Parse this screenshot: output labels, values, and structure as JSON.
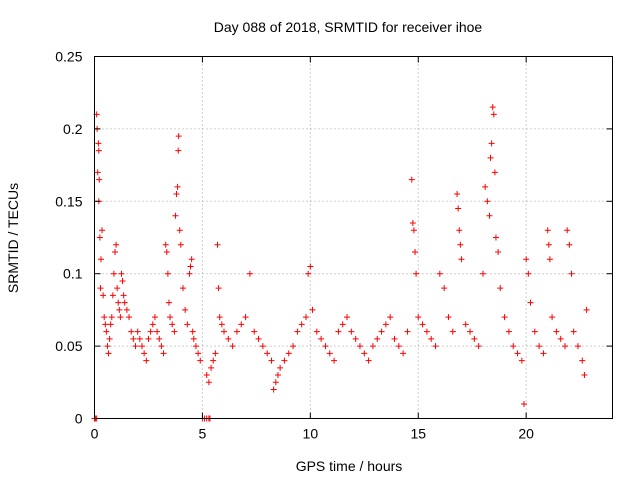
{
  "chart_data": {
    "type": "scatter",
    "title": "Day 088 of 2018, SRMTID for receiver ihoe",
    "xlabel": "GPS time / hours",
    "ylabel": "SRMTID / TECUs",
    "xlim": [
      0,
      24
    ],
    "ylim": [
      0,
      0.25
    ],
    "xticks": [
      0,
      5,
      10,
      15,
      20
    ],
    "xtick_labels": [
      "0",
      "5",
      "10",
      "15",
      "20"
    ],
    "yticks": [
      0,
      0.05,
      0.1,
      0.15,
      0.2,
      0.25
    ],
    "ytick_labels": [
      "0",
      "0.05",
      "0.1",
      "0.15",
      "0.2",
      "0.25"
    ],
    "grid": true,
    "marker": "plus",
    "color": "#ff0000",
    "series": [
      {
        "name": "SRMTID",
        "points": [
          [
            0.0,
            0.0
          ],
          [
            0.05,
            0.0
          ],
          [
            0.1,
            0.0
          ],
          [
            0.1,
            0.21
          ],
          [
            0.12,
            0.2
          ],
          [
            0.18,
            0.19
          ],
          [
            0.2,
            0.185
          ],
          [
            0.15,
            0.17
          ],
          [
            0.22,
            0.165
          ],
          [
            0.2,
            0.15
          ],
          [
            0.25,
            0.125
          ],
          [
            0.3,
            0.11
          ],
          [
            0.35,
            0.13
          ],
          [
            0.28,
            0.09
          ],
          [
            0.4,
            0.085
          ],
          [
            0.45,
            0.07
          ],
          [
            0.5,
            0.065
          ],
          [
            0.55,
            0.06
          ],
          [
            0.6,
            0.05
          ],
          [
            0.65,
            0.045
          ],
          [
            0.7,
            0.055
          ],
          [
            0.75,
            0.065
          ],
          [
            0.8,
            0.07
          ],
          [
            0.85,
            0.085
          ],
          [
            0.9,
            0.1
          ],
          [
            0.95,
            0.115
          ],
          [
            1.0,
            0.12
          ],
          [
            1.05,
            0.09
          ],
          [
            1.1,
            0.08
          ],
          [
            1.15,
            0.075
          ],
          [
            1.2,
            0.07
          ],
          [
            1.25,
            0.1
          ],
          [
            1.3,
            0.095
          ],
          [
            1.35,
            0.085
          ],
          [
            1.4,
            0.08
          ],
          [
            1.5,
            0.075
          ],
          [
            1.6,
            0.07
          ],
          [
            1.7,
            0.06
          ],
          [
            1.8,
            0.055
          ],
          [
            1.9,
            0.05
          ],
          [
            2.0,
            0.06
          ],
          [
            2.1,
            0.055
          ],
          [
            2.2,
            0.05
          ],
          [
            2.3,
            0.045
          ],
          [
            2.4,
            0.04
          ],
          [
            2.5,
            0.055
          ],
          [
            2.6,
            0.06
          ],
          [
            2.7,
            0.065
          ],
          [
            2.8,
            0.07
          ],
          [
            2.9,
            0.06
          ],
          [
            3.0,
            0.055
          ],
          [
            3.1,
            0.05
          ],
          [
            3.2,
            0.045
          ],
          [
            3.3,
            0.12
          ],
          [
            3.35,
            0.115
          ],
          [
            3.4,
            0.1
          ],
          [
            3.45,
            0.08
          ],
          [
            3.5,
            0.07
          ],
          [
            3.6,
            0.065
          ],
          [
            3.7,
            0.06
          ],
          [
            3.75,
            0.14
          ],
          [
            3.8,
            0.155
          ],
          [
            3.85,
            0.16
          ],
          [
            3.88,
            0.185
          ],
          [
            3.9,
            0.195
          ],
          [
            3.95,
            0.13
          ],
          [
            4.0,
            0.12
          ],
          [
            4.1,
            0.09
          ],
          [
            4.2,
            0.075
          ],
          [
            4.3,
            0.065
          ],
          [
            4.4,
            0.1
          ],
          [
            4.45,
            0.105
          ],
          [
            4.5,
            0.11
          ],
          [
            4.55,
            0.06
          ],
          [
            4.6,
            0.055
          ],
          [
            4.7,
            0.05
          ],
          [
            4.8,
            0.045
          ],
          [
            4.9,
            0.04
          ],
          [
            5.0,
            0.0
          ],
          [
            5.1,
            0.0
          ],
          [
            5.2,
            0.0
          ],
          [
            5.3,
            0.0
          ],
          [
            5.35,
            0.0
          ],
          [
            5.2,
            0.03
          ],
          [
            5.3,
            0.025
          ],
          [
            5.4,
            0.035
          ],
          [
            5.5,
            0.04
          ],
          [
            5.6,
            0.045
          ],
          [
            5.7,
            0.12
          ],
          [
            5.75,
            0.09
          ],
          [
            5.8,
            0.07
          ],
          [
            5.9,
            0.065
          ],
          [
            6.0,
            0.06
          ],
          [
            6.2,
            0.055
          ],
          [
            6.4,
            0.05
          ],
          [
            6.6,
            0.06
          ],
          [
            6.8,
            0.065
          ],
          [
            7.0,
            0.07
          ],
          [
            7.2,
            0.1
          ],
          [
            7.4,
            0.06
          ],
          [
            7.6,
            0.055
          ],
          [
            7.8,
            0.05
          ],
          [
            8.0,
            0.045
          ],
          [
            8.2,
            0.04
          ],
          [
            8.3,
            0.02
          ],
          [
            8.4,
            0.025
          ],
          [
            8.5,
            0.03
          ],
          [
            8.6,
            0.035
          ],
          [
            8.8,
            0.04
          ],
          [
            9.0,
            0.045
          ],
          [
            9.2,
            0.05
          ],
          [
            9.4,
            0.06
          ],
          [
            9.6,
            0.065
          ],
          [
            9.8,
            0.07
          ],
          [
            9.9,
            0.1
          ],
          [
            10.0,
            0.105
          ],
          [
            10.1,
            0.075
          ],
          [
            10.3,
            0.06
          ],
          [
            10.5,
            0.055
          ],
          [
            10.7,
            0.05
          ],
          [
            10.9,
            0.045
          ],
          [
            11.1,
            0.04
          ],
          [
            11.3,
            0.06
          ],
          [
            11.5,
            0.065
          ],
          [
            11.7,
            0.07
          ],
          [
            11.9,
            0.06
          ],
          [
            12.1,
            0.055
          ],
          [
            12.3,
            0.05
          ],
          [
            12.5,
            0.045
          ],
          [
            12.7,
            0.04
          ],
          [
            12.9,
            0.05
          ],
          [
            13.1,
            0.055
          ],
          [
            13.3,
            0.06
          ],
          [
            13.5,
            0.065
          ],
          [
            13.7,
            0.07
          ],
          [
            13.9,
            0.055
          ],
          [
            14.1,
            0.05
          ],
          [
            14.3,
            0.045
          ],
          [
            14.5,
            0.06
          ],
          [
            14.7,
            0.165
          ],
          [
            14.75,
            0.135
          ],
          [
            14.8,
            0.13
          ],
          [
            14.85,
            0.115
          ],
          [
            14.9,
            0.1
          ],
          [
            15.0,
            0.07
          ],
          [
            15.2,
            0.065
          ],
          [
            15.4,
            0.06
          ],
          [
            15.6,
            0.055
          ],
          [
            15.8,
            0.05
          ],
          [
            16.0,
            0.1
          ],
          [
            16.2,
            0.09
          ],
          [
            16.4,
            0.07
          ],
          [
            16.6,
            0.06
          ],
          [
            16.8,
            0.155
          ],
          [
            16.85,
            0.145
          ],
          [
            16.9,
            0.13
          ],
          [
            16.95,
            0.12
          ],
          [
            17.0,
            0.11
          ],
          [
            17.2,
            0.065
          ],
          [
            17.4,
            0.06
          ],
          [
            17.6,
            0.055
          ],
          [
            17.8,
            0.05
          ],
          [
            18.0,
            0.1
          ],
          [
            18.1,
            0.16
          ],
          [
            18.2,
            0.15
          ],
          [
            18.3,
            0.14
          ],
          [
            18.35,
            0.18
          ],
          [
            18.4,
            0.19
          ],
          [
            18.45,
            0.215
          ],
          [
            18.5,
            0.21
          ],
          [
            18.55,
            0.17
          ],
          [
            18.6,
            0.125
          ],
          [
            18.7,
            0.115
          ],
          [
            18.8,
            0.09
          ],
          [
            19.0,
            0.07
          ],
          [
            19.2,
            0.06
          ],
          [
            19.4,
            0.05
          ],
          [
            19.6,
            0.045
          ],
          [
            19.8,
            0.04
          ],
          [
            19.9,
            0.01
          ],
          [
            20.0,
            0.11
          ],
          [
            20.1,
            0.1
          ],
          [
            20.2,
            0.08
          ],
          [
            20.4,
            0.06
          ],
          [
            20.6,
            0.05
          ],
          [
            20.8,
            0.045
          ],
          [
            21.0,
            0.13
          ],
          [
            21.05,
            0.12
          ],
          [
            21.1,
            0.11
          ],
          [
            21.2,
            0.07
          ],
          [
            21.4,
            0.06
          ],
          [
            21.6,
            0.055
          ],
          [
            21.8,
            0.05
          ],
          [
            21.9,
            0.13
          ],
          [
            22.0,
            0.12
          ],
          [
            22.1,
            0.1
          ],
          [
            22.2,
            0.06
          ],
          [
            22.4,
            0.05
          ],
          [
            22.6,
            0.04
          ],
          [
            22.7,
            0.03
          ],
          [
            22.8,
            0.075
          ]
        ]
      }
    ]
  }
}
